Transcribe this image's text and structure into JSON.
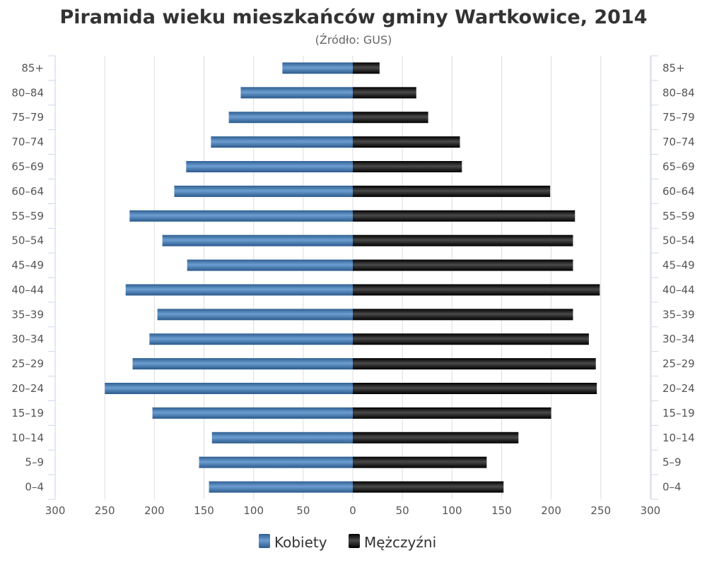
{
  "chart_data": {
    "type": "bar",
    "title": "Piramida wieku mieszkańców gminy Wartkowice, 2014",
    "subtitle": "(Źródło: GUS)",
    "categories": [
      "85+",
      "80–84",
      "75–79",
      "70–74",
      "65–69",
      "60–64",
      "55–59",
      "50–54",
      "45–49",
      "40–44",
      "35–39",
      "30–34",
      "25–29",
      "20–24",
      "15–19",
      "10–14",
      "5–9",
      "0–4"
    ],
    "series": [
      {
        "name": "Kobiety",
        "values": [
          71,
          113,
          125,
          143,
          168,
          180,
          225,
          192,
          167,
          229,
          197,
          205,
          222,
          250,
          202,
          142,
          155,
          145
        ]
      },
      {
        "name": "Mężczyźni",
        "values": [
          27,
          64,
          76,
          108,
          110,
          199,
          224,
          222,
          222,
          249,
          222,
          238,
          245,
          246,
          200,
          167,
          135,
          152
        ]
      }
    ],
    "xlim": [
      -300,
      300
    ],
    "x_ticks": [
      "300",
      "250",
      "200",
      "150",
      "100",
      "50",
      "0",
      "50",
      "100",
      "150",
      "200",
      "250",
      "300"
    ],
    "grid": true,
    "legend": "bottom-center",
    "colors": {
      "female": "#4a7fb5",
      "male": "#1a1a1a",
      "grid": "#dddddd",
      "axis": "#ccd6eb"
    }
  }
}
